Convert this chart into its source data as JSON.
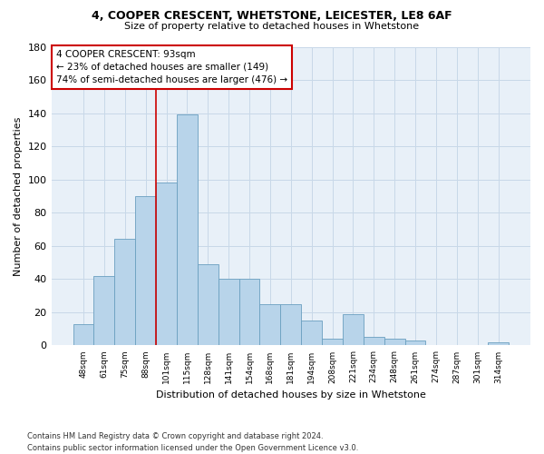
{
  "title1": "4, COOPER CRESCENT, WHETSTONE, LEICESTER, LE8 6AF",
  "title2": "Size of property relative to detached houses in Whetstone",
  "xlabel": "Distribution of detached houses by size in Whetstone",
  "ylabel": "Number of detached properties",
  "bar_labels": [
    "48sqm",
    "61sqm",
    "75sqm",
    "88sqm",
    "101sqm",
    "115sqm",
    "128sqm",
    "141sqm",
    "154sqm",
    "168sqm",
    "181sqm",
    "194sqm",
    "208sqm",
    "221sqm",
    "234sqm",
    "248sqm",
    "261sqm",
    "274sqm",
    "287sqm",
    "301sqm",
    "314sqm"
  ],
  "bar_values": [
    13,
    42,
    64,
    90,
    98,
    139,
    49,
    40,
    40,
    25,
    25,
    15,
    4,
    19,
    5,
    4,
    3,
    0,
    0,
    0,
    2
  ],
  "bar_color": "#b8d4ea",
  "bar_edgecolor": "#6a9fc0",
  "vline_color": "#cc0000",
  "vline_pos": 3.5,
  "annotation_text": "4 COOPER CRESCENT: 93sqm\n← 23% of detached houses are smaller (149)\n74% of semi-detached houses are larger (476) →",
  "annotation_box_color": "#cc0000",
  "ylim": [
    0,
    180
  ],
  "yticks": [
    0,
    20,
    40,
    60,
    80,
    100,
    120,
    140,
    160,
    180
  ],
  "background_color": "#ffffff",
  "ax_facecolor": "#e8f0f8",
  "grid_color": "#c8d8e8",
  "footnote": "Contains HM Land Registry data © Crown copyright and database right 2024.\nContains public sector information licensed under the Open Government Licence v3.0."
}
